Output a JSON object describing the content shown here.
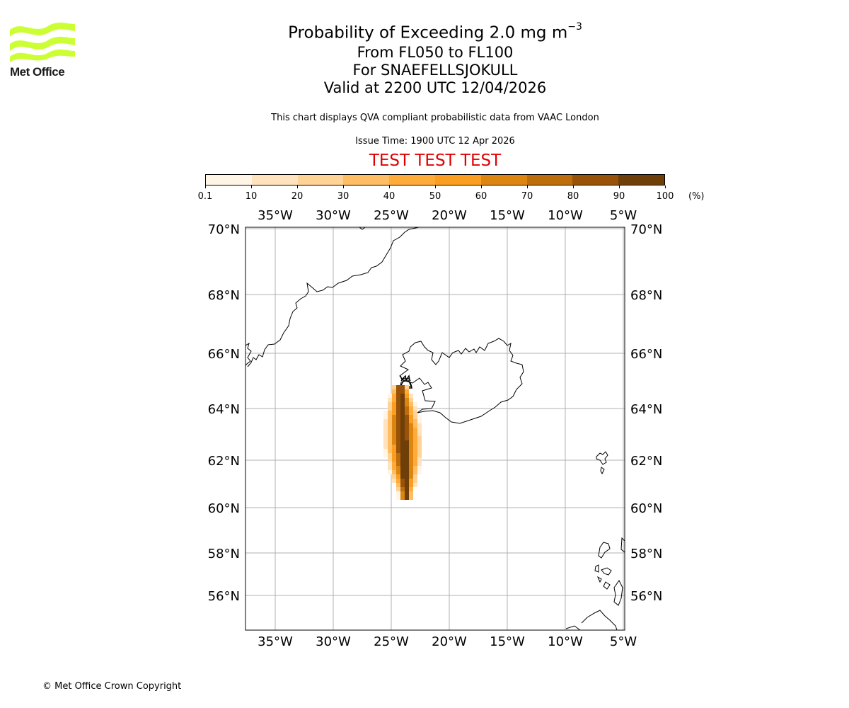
{
  "logo": {
    "text": "Met Office",
    "color": "#ccff33"
  },
  "header": {
    "title_main": "Probability of Exceeding 2.0 mg m",
    "title_exponent": "−3",
    "levels": "From FL050 to FL100",
    "volcano": "For SNAEFELLSJOKULL",
    "valid": "Valid at 2200 UTC 12/04/2026",
    "description": "This chart displays QVA compliant probabilistic data from VAAC London",
    "issue_time": "Issue Time: 1900 UTC 12 Apr 2026",
    "test_banner": "TEST TEST TEST",
    "test_color": "#e00000"
  },
  "colorbar": {
    "unit": "(%)",
    "ticks": [
      "0.1",
      "10",
      "20",
      "30",
      "40",
      "50",
      "60",
      "70",
      "80",
      "90",
      "100"
    ],
    "colors": [
      "#fff5e6",
      "#ffe3bf",
      "#ffd295",
      "#ffbe64",
      "#ffab3a",
      "#fa9d20",
      "#dc8511",
      "#bd6d0b",
      "#985308",
      "#6f3f0a"
    ]
  },
  "map": {
    "lon_labels": [
      "35°W",
      "30°W",
      "25°W",
      "20°W",
      "15°W",
      "10°W",
      "5°W"
    ],
    "lat_labels": [
      "70°N",
      "68°N",
      "66°N",
      "64°N",
      "62°N",
      "60°N",
      "58°N",
      "56°N"
    ],
    "source": {
      "name": "SNAEFELLSJOKULL"
    }
  },
  "plume_data": {
    "probability_percent": [
      100,
      95,
      85,
      75,
      65,
      55,
      45,
      35,
      25,
      15,
      6
    ]
  },
  "footer": {
    "copyright": "© Met Office Crown Copyright"
  }
}
